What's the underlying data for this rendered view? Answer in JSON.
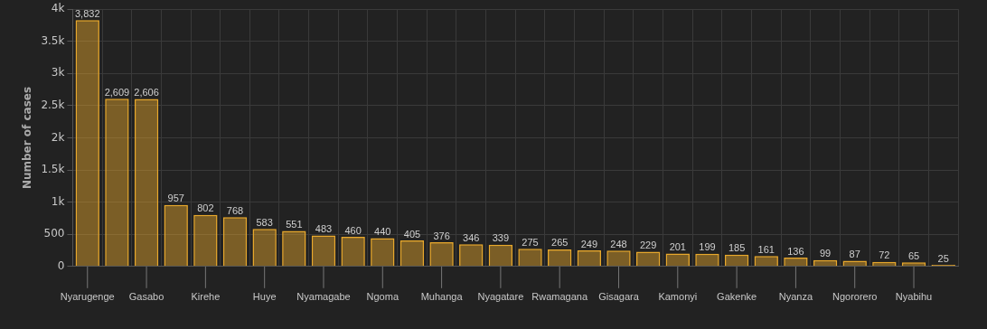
{
  "chart_data": {
    "type": "bar",
    "ylabel": "Number of cases",
    "categories": [
      "Nyarugenge",
      null,
      "Gasabo",
      null,
      "Kirehe",
      null,
      "Huye",
      null,
      "Nyamagabe",
      null,
      "Ngoma",
      null,
      "Muhanga",
      null,
      "Nyagatare",
      null,
      "Rwamagana",
      null,
      "Gisagara",
      null,
      "Kamonyi",
      null,
      "Gakenke",
      null,
      "Nyanza",
      null,
      "Ngororero",
      null,
      "Nyabihu",
      null
    ],
    "series": [
      {
        "color": "#e8a82c",
        "values": [
          3832,
          2609,
          2606,
          957,
          802,
          768,
          583,
          551,
          483,
          460,
          440,
          405,
          376,
          346,
          339,
          275,
          265,
          249,
          248,
          229,
          201,
          199,
          185,
          161,
          136,
          99,
          87,
          72,
          65,
          25
        ],
        "value_labels": [
          "3,832",
          "2,609",
          "2,606",
          "957",
          "802",
          "768",
          "583",
          "551",
          "483",
          "460",
          "440",
          "405",
          "376",
          "346",
          "339",
          "275",
          "265",
          "249",
          "248",
          "229",
          "201",
          "199",
          "185",
          "161",
          "136",
          "99",
          "87",
          "72",
          "65",
          "25"
        ]
      }
    ],
    "ylim": [
      0,
      4000
    ],
    "yticks": [
      0,
      500,
      {
        "value": 1000,
        "label": "1k"
      },
      {
        "value": 1500,
        "label": "1.5k"
      },
      {
        "value": 2000,
        "label": "2k"
      },
      {
        "value": 2500,
        "label": "2.5k"
      },
      {
        "value": 3000,
        "label": "3k"
      },
      {
        "value": 3500,
        "label": "3.5k"
      },
      {
        "value": 4000,
        "label": "4k"
      }
    ],
    "grid": true,
    "legend": false
  }
}
